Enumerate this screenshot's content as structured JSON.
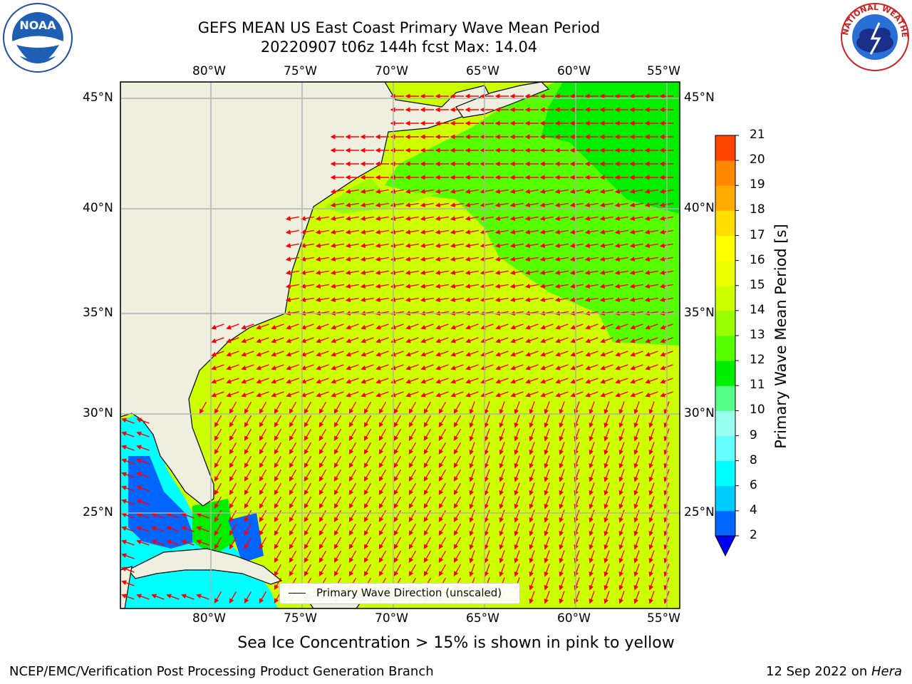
{
  "title": {
    "line1": "GEFS MEAN US East Coast Primary Wave Mean Period",
    "line2": "20220907 t06z 144h fcst   Max: 14.04"
  },
  "logos": {
    "left": "NOAA",
    "right": "NATIONAL WEATHER SERVICE"
  },
  "map": {
    "lon_labels": [
      "80°W",
      "75°W",
      "70°W",
      "65°W",
      "60°W",
      "55°W"
    ],
    "lat_labels": [
      "45°N",
      "40°N",
      "35°N",
      "30°N",
      "25°N"
    ],
    "legend_label": "Primary Wave Direction (unscaled)",
    "land_color": "#efefdf",
    "arrow_color": "#ff0000"
  },
  "colorbar": {
    "title": "Primary Wave Mean Period [s]",
    "ticks": [
      "2",
      "4",
      "6",
      "8",
      "9",
      "10",
      "11",
      "12",
      "13",
      "14",
      "15",
      "16",
      "17",
      "18",
      "19",
      "20",
      "21"
    ],
    "colors": [
      "#0066ff",
      "#00ccff",
      "#00ffff",
      "#66ffff",
      "#99ffee",
      "#55ff88",
      "#00ee00",
      "#55ff00",
      "#99ff00",
      "#ccff00",
      "#eeff00",
      "#ffff00",
      "#ffdd00",
      "#ffaa00",
      "#ff8800",
      "#ff4400",
      "#ff0000"
    ],
    "extend_color": "#0000ee"
  },
  "subtitle": "Sea Ice Concentration > 15% is shown in pink to yellow",
  "footer": {
    "left": "NCEP/EMC/Verification Post Processing Product Generation Branch",
    "right_prefix": "12 Sep 2022 on ",
    "right_host": "Hera"
  }
}
